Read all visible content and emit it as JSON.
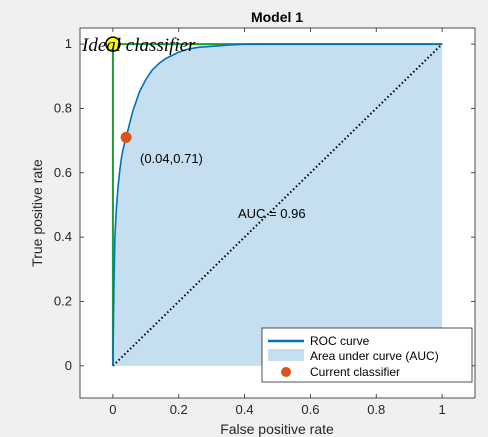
{
  "chart_data": {
    "type": "line",
    "title": "Model 1",
    "xlabel": "False positive rate",
    "ylabel": "True positive rate",
    "xlim": [
      -0.1,
      1.1
    ],
    "ylim": [
      -0.1,
      1.05
    ],
    "xticks": [
      "0",
      "0.2",
      "0.4",
      "0.6",
      "0.8",
      "1"
    ],
    "xtick_values": [
      0,
      0.2,
      0.4,
      0.6,
      0.8,
      1
    ],
    "yticks": [
      "0",
      "0.2",
      "0.4",
      "0.6",
      "0.8",
      "1"
    ],
    "ytick_values": [
      0,
      0.2,
      0.4,
      0.6,
      0.8,
      1
    ],
    "grid": false,
    "legend_position": "bottom-right",
    "roc_curve": {
      "name": "ROC curve",
      "color": "#0072bd",
      "x": [
        0,
        0.003,
        0.006,
        0.01,
        0.015,
        0.02,
        0.025,
        0.03,
        0.035,
        0.04,
        0.05,
        0.06,
        0.07,
        0.08,
        0.09,
        0.1,
        0.12,
        0.14,
        0.16,
        0.18,
        0.2,
        0.23,
        0.26,
        0.3,
        0.35,
        0.4,
        0.5,
        0.6,
        0.7,
        0.8,
        0.9,
        1
      ],
      "y": [
        0,
        0.25,
        0.4,
        0.48,
        0.55,
        0.6,
        0.64,
        0.67,
        0.69,
        0.71,
        0.75,
        0.79,
        0.82,
        0.85,
        0.87,
        0.89,
        0.92,
        0.94,
        0.955,
        0.965,
        0.975,
        0.985,
        0.99,
        0.993,
        0.997,
        1,
        1,
        1,
        1,
        1,
        1,
        1
      ]
    },
    "auc_area": {
      "name": "Area under curve (AUC)",
      "color": "#c5dff0"
    },
    "current_classifier": {
      "name": "Current classifier",
      "x": 0.04,
      "y": 0.71,
      "label": "(0.04,0.71)",
      "color": "#d95319"
    },
    "ideal_classifier": {
      "label": "Ideal classifier",
      "x": 0,
      "y": 1,
      "color": "#ffff00"
    },
    "ideal_path": {
      "x": [
        0,
        0,
        1
      ],
      "y": [
        0,
        1,
        1
      ],
      "color": "#1a9e3a"
    },
    "diagonal": {
      "x": [
        0,
        1
      ],
      "y": [
        0,
        1
      ],
      "style": "dotted"
    },
    "auc_label": "AUC = 0.96",
    "legend": [
      "ROC curve",
      "Area under curve (AUC)",
      "Current classifier"
    ]
  }
}
